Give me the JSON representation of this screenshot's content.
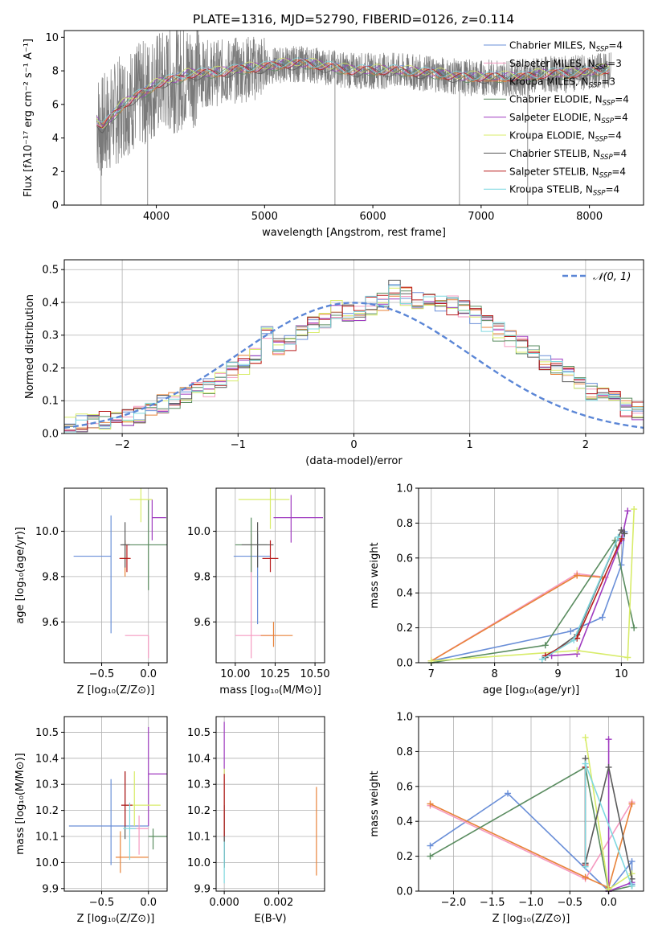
{
  "title": "PLATE=1316, MJD=52790, FIBERID=0126, z=0.114",
  "colors": [
    "#6a8fd8",
    "#f59ac0",
    "#e8833a",
    "#5a8c60",
    "#a03cc0",
    "#d8ec6a",
    "#5a5a5a",
    "#b81c1c",
    "#7fd8e0"
  ],
  "chart_data": [
    {
      "name": "spectrum",
      "type": "line",
      "xlabel": "wavelength [Angstrom, rest frame]",
      "ylabel": "Flux [fλ10⁻¹⁷ erg cm⁻² s⁻¹ A⁻¹]",
      "xlim": [
        3150,
        8500
      ],
      "ylim": [
        0,
        10.4
      ],
      "xticks": [
        4000,
        5000,
        6000,
        7000,
        8000
      ],
      "yticks": [
        0,
        2,
        4,
        6,
        8,
        10
      ],
      "grid": false,
      "legend_position": "right",
      "data_x": [
        3450,
        3500,
        3600,
        3700,
        3800,
        3900,
        4000,
        4100,
        4200,
        4300,
        4400,
        4600,
        4800,
        5000,
        5200,
        5400,
        5600,
        5800,
        6000,
        6200,
        6400,
        6600,
        6800,
        7000,
        7200,
        7400,
        7600,
        7800,
        8000,
        8200
      ],
      "data_y": [
        5.0,
        4.6,
        5.3,
        6.0,
        6.4,
        6.7,
        7.2,
        7.4,
        7.5,
        7.8,
        7.8,
        7.9,
        8.1,
        8.2,
        8.4,
        8.4,
        8.2,
        8.0,
        8.0,
        8.0,
        7.9,
        7.8,
        7.6,
        7.6,
        7.6,
        7.6,
        7.8,
        7.8,
        7.9,
        8.1
      ],
      "legend": [
        {
          "label": "Chabrier MILES, N",
          "sub": "SSP",
          "suffix": "=4"
        },
        {
          "label": "Salpeter MILES, N",
          "sub": "SSP",
          "suffix": "=3"
        },
        {
          "label": "Kroupa MILES, N",
          "sub": "SSP",
          "suffix": "=3"
        },
        {
          "label": "Chabrier ELODIE, N",
          "sub": "SSP",
          "suffix": "=4"
        },
        {
          "label": "Salpeter ELODIE, N",
          "sub": "SSP",
          "suffix": "=4"
        },
        {
          "label": "Kroupa ELODIE, N",
          "sub": "SSP",
          "suffix": "=4"
        },
        {
          "label": "Chabrier STELIB, N",
          "sub": "SSP",
          "suffix": "=4"
        },
        {
          "label": "Salpeter STELIB, N",
          "sub": "SSP",
          "suffix": "=4"
        },
        {
          "label": "Kroupa STELIB, N",
          "sub": "SSP",
          "suffix": "=4"
        }
      ]
    },
    {
      "name": "residuals",
      "type": "histogram",
      "xlabel": "(data-model)/error",
      "ylabel": "Normed distribution",
      "xlim": [
        -2.5,
        2.5
      ],
      "ylim": [
        0,
        0.53
      ],
      "xticks": [
        -2,
        -1,
        0,
        1,
        2
      ],
      "xticklabels": [
        "−2",
        "−1",
        "0",
        "1",
        "2"
      ],
      "yticks": [
        0.0,
        0.1,
        0.2,
        0.3,
        0.4,
        0.5
      ],
      "yticklabels": [
        "0.0",
        "0.1",
        "0.2",
        "0.3",
        "0.4",
        "0.5"
      ],
      "grid": true,
      "legend_label": "𝒩(0, 1)",
      "bin_width": 0.1,
      "bin_start": -2.5,
      "densities": [
        0.02,
        0.03,
        0.03,
        0.04,
        0.05,
        0.05,
        0.06,
        0.08,
        0.09,
        0.1,
        0.12,
        0.13,
        0.14,
        0.17,
        0.19,
        0.21,
        0.24,
        0.3,
        0.27,
        0.28,
        0.31,
        0.33,
        0.35,
        0.38,
        0.37,
        0.36,
        0.39,
        0.4,
        0.44,
        0.42,
        0.41,
        0.42,
        0.4,
        0.39,
        0.38,
        0.36,
        0.33,
        0.31,
        0.29,
        0.27,
        0.24,
        0.22,
        0.2,
        0.18,
        0.15,
        0.13,
        0.12,
        0.1,
        0.08,
        0.07,
        0.05
      ],
      "gaussian": {
        "mu": 0,
        "sigma": 1
      }
    },
    {
      "name": "age-vs-metallicity",
      "type": "errorbar",
      "xlabel": "Z [log₁₀(Z/Z⊙)]",
      "ylabel": "age  [log₁₀(age/yr)]",
      "xlim": [
        -0.9,
        0.2
      ],
      "ylim": [
        9.42,
        10.19
      ],
      "xticks": [
        -0.5,
        0.0
      ],
      "xticklabels": [
        "−0.5",
        "0.0"
      ],
      "yticks": [
        9.6,
        9.8,
        10.0
      ],
      "yticklabels": [
        "9.6",
        "9.8",
        "10.0"
      ],
      "grid": true,
      "points": [
        {
          "x": -0.4,
          "y": 9.89,
          "xerr": [
            0.4,
            0.0
          ],
          "yerr": [
            0.34,
            0.18
          ]
        },
        {
          "x": 0.0,
          "y": 9.54,
          "xerr": [
            0.25,
            0.0
          ],
          "yerr": [
            0.1,
            0.0
          ]
        },
        {
          "x": -0.25,
          "y": 9.88,
          "xerr": [
            0.05,
            0.05
          ],
          "yerr": [
            0.08,
            0.08
          ]
        },
        {
          "x": 0.0,
          "y": 9.94,
          "xerr": [
            0.28,
            0.2
          ],
          "yerr": [
            0.2,
            0.2
          ]
        },
        {
          "x": 0.04,
          "y": 10.06,
          "xerr": [
            0.0,
            0.15
          ],
          "yerr": [
            0.1,
            0.08
          ]
        },
        {
          "x": -0.08,
          "y": 10.14,
          "xerr": [
            0.12,
            0.12
          ],
          "yerr": [
            0.1,
            0.05
          ]
        },
        {
          "x": -0.25,
          "y": 9.94,
          "xerr": [
            0.05,
            0.05
          ],
          "yerr": [
            0.1,
            0.1
          ]
        },
        {
          "x": -0.23,
          "y": 9.88,
          "xerr": [
            0.08,
            0.04
          ],
          "yerr": [
            0.06,
            0.06
          ]
        }
      ]
    },
    {
      "name": "age-vs-mass",
      "type": "errorbar",
      "xlabel": "mass [log₁₀(M/M⊙)]",
      "ylabel": "",
      "xlim": [
        9.88,
        10.56
      ],
      "ylim": [
        9.42,
        10.19
      ],
      "xticks": [
        10.0,
        10.25,
        10.5
      ],
      "xticklabels": [
        "10.00",
        "10.25",
        "10.50"
      ],
      "yticks": [
        9.6,
        9.8,
        10.0
      ],
      "yticklabels": [
        "9.6",
        "9.8",
        "10.0"
      ],
      "grid": true,
      "points": [
        {
          "x": 10.14,
          "y": 9.89,
          "xerr": [
            0.15,
            0.08
          ],
          "yerr": [
            0.3,
            0.1
          ]
        },
        {
          "x": 10.1,
          "y": 9.54,
          "xerr": [
            0.1,
            0.15
          ],
          "yerr": [
            0.1,
            0.45
          ]
        },
        {
          "x": 10.24,
          "y": 9.54,
          "xerr": [
            0.08,
            0.12
          ],
          "yerr": [
            0.05,
            0.06
          ]
        },
        {
          "x": 10.1,
          "y": 9.94,
          "xerr": [
            0.1,
            0.1
          ],
          "yerr": [
            0.12,
            0.12
          ]
        },
        {
          "x": 10.35,
          "y": 10.06,
          "xerr": [
            0.11,
            0.2
          ],
          "yerr": [
            0.11,
            0.1
          ]
        },
        {
          "x": 10.22,
          "y": 10.14,
          "xerr": [
            0.2,
            0.12
          ],
          "yerr": [
            0.13,
            0.05
          ]
        },
        {
          "x": 10.14,
          "y": 9.94,
          "xerr": [
            0.1,
            0.1
          ],
          "yerr": [
            0.1,
            0.1
          ]
        },
        {
          "x": 10.22,
          "y": 9.88,
          "xerr": [
            0.05,
            0.05
          ],
          "yerr": [
            0.06,
            0.08
          ]
        }
      ]
    },
    {
      "name": "weight-vs-age",
      "type": "line",
      "xlabel": "age  [log₁₀(age/yr)]",
      "ylabel": "mass weight",
      "xlim": [
        6.8,
        10.35
      ],
      "ylim": [
        0,
        1.0
      ],
      "xticks": [
        7,
        8,
        9,
        10
      ],
      "xticklabels": [
        "7",
        "8",
        "9",
        "10"
      ],
      "yticks": [
        0.0,
        0.2,
        0.4,
        0.6,
        0.8,
        1.0
      ],
      "yticklabels": [
        "0.0",
        "0.2",
        "0.4",
        "0.6",
        "0.8",
        "1.0"
      ],
      "grid": true,
      "series": [
        {
          "x": [
            7.0,
            9.2,
            9.7,
            10.0,
            10.05
          ],
          "y": [
            0.01,
            0.18,
            0.26,
            0.56,
            0.75
          ]
        },
        {
          "x": [
            7.0,
            9.3,
            9.75
          ],
          "y": [
            0.01,
            0.51,
            0.49
          ]
        },
        {
          "x": [
            7.0,
            9.3,
            9.7
          ],
          "y": [
            0.01,
            0.5,
            0.49
          ]
        },
        {
          "x": [
            7.0,
            8.8,
            9.9,
            10.2
          ],
          "y": [
            0.0,
            0.1,
            0.7,
            0.2
          ]
        },
        {
          "x": [
            8.9,
            9.3,
            10.0,
            10.1
          ],
          "y": [
            0.04,
            0.05,
            0.7,
            0.87
          ]
        },
        {
          "x": [
            7.0,
            9.3,
            10.1,
            10.2
          ],
          "y": [
            0.01,
            0.07,
            0.03,
            0.88
          ]
        },
        {
          "x": [
            8.8,
            9.3,
            10.0,
            10.05
          ],
          "y": [
            0.03,
            0.16,
            0.76,
            0.74
          ]
        },
        {
          "x": [
            8.8,
            9.3,
            10.0
          ],
          "y": [
            0.04,
            0.14,
            0.71
          ]
        },
        {
          "x": [
            8.75,
            9.25,
            9.95
          ],
          "y": [
            0.02,
            0.13,
            0.72
          ]
        }
      ]
    },
    {
      "name": "mass-vs-metallicity",
      "type": "errorbar",
      "xlabel": "Z [log₁₀(Z/Z⊙)]",
      "ylabel": "mass [log₁₀(M/M⊙)]",
      "xlim": [
        -0.9,
        0.2
      ],
      "ylim": [
        9.89,
        10.56
      ],
      "xticks": [
        -0.5,
        0.0
      ],
      "xticklabels": [
        "−0.5",
        "0.0"
      ],
      "yticks": [
        9.9,
        10.0,
        10.1,
        10.2,
        10.3,
        10.4,
        10.5
      ],
      "yticklabels": [
        "9.9",
        "10.0",
        "10.1",
        "10.2",
        "10.3",
        "10.4",
        "10.5"
      ],
      "grid": true,
      "points": [
        {
          "x": -0.4,
          "y": 10.14,
          "xerr": [
            0.45,
            0.4
          ],
          "yerr": [
            0.15,
            0.18
          ]
        },
        {
          "x": -0.1,
          "y": 10.13,
          "xerr": [
            0.1,
            0.1
          ],
          "yerr": [
            0.1,
            0.05
          ]
        },
        {
          "x": -0.3,
          "y": 10.02,
          "xerr": [
            0.05,
            0.3
          ],
          "yerr": [
            0.06,
            0.1
          ]
        },
        {
          "x": 0.05,
          "y": 10.1,
          "xerr": [
            0.05,
            0.18
          ],
          "yerr": [
            0.05,
            0.03
          ]
        },
        {
          "x": 0.0,
          "y": 10.34,
          "xerr": [
            0.0,
            0.2
          ],
          "yerr": [
            0.2,
            0.18
          ]
        },
        {
          "x": -0.15,
          "y": 10.22,
          "xerr": [
            0.1,
            0.28
          ],
          "yerr": [
            0.08,
            0.13
          ]
        },
        {
          "x": -0.25,
          "y": 10.22,
          "xerr": [
            0.04,
            0.04
          ],
          "yerr": [
            0.13,
            0.13
          ]
        },
        {
          "x": -0.25,
          "y": 10.22,
          "xerr": [
            0.04,
            0.08
          ],
          "yerr": [
            0.08,
            0.13
          ]
        },
        {
          "x": -0.2,
          "y": 10.13,
          "xerr": [
            0.07,
            0.07
          ],
          "yerr": [
            0.12,
            0.1
          ]
        }
      ]
    },
    {
      "name": "mass-vs-ebv",
      "type": "errorbar",
      "xlabel": "E(B-V)",
      "ylabel": "",
      "xlim": [
        -0.0003,
        0.0037
      ],
      "ylim": [
        9.89,
        10.56
      ],
      "xticks": [
        0.0,
        0.002
      ],
      "xticklabels": [
        "0.000",
        "0.002"
      ],
      "yticks": [
        9.9,
        10.0,
        10.1,
        10.2,
        10.3,
        10.4,
        10.5
      ],
      "yticklabels": [
        "9.9",
        "10.0",
        "10.1",
        "10.2",
        "10.3",
        "10.4",
        "10.5"
      ],
      "grid": true,
      "points": [
        {
          "x": 0.0,
          "y": 10.14,
          "xerr": [
            0,
            0
          ],
          "yerr": [
            0.15,
            0.18
          ]
        },
        {
          "x": 0.0,
          "y": 10.13,
          "xerr": [
            0,
            0
          ],
          "yerr": [
            0.1,
            0.05
          ]
        },
        {
          "x": 0.0034,
          "y": 10.13,
          "xerr": [
            0,
            0
          ],
          "yerr": [
            0.18,
            0.16
          ]
        },
        {
          "x": 0.0,
          "y": 10.1,
          "xerr": [
            0,
            0
          ],
          "yerr": [
            0.12,
            0.12
          ]
        },
        {
          "x": 0.0,
          "y": 10.34,
          "xerr": [
            0,
            0
          ],
          "yerr": [
            0.2,
            0.2
          ]
        },
        {
          "x": 0.0,
          "y": 10.2,
          "xerr": [
            0,
            0
          ],
          "yerr": [
            0.08,
            0.16
          ]
        },
        {
          "x": 0.0,
          "y": 10.1,
          "xerr": [
            0,
            0
          ],
          "yerr": [
            0.12,
            0.12
          ]
        },
        {
          "x": 0.0,
          "y": 10.22,
          "xerr": [
            0,
            0
          ],
          "yerr": [
            0.12,
            0.12
          ]
        },
        {
          "x": 0.0,
          "y": 10.0,
          "xerr": [
            0,
            0
          ],
          "yerr": [
            0.08,
            0.08
          ]
        }
      ]
    },
    {
      "name": "weight-vs-metallicity",
      "type": "line",
      "xlabel": "Z [log₁₀(Z/Z⊙)]",
      "ylabel": "mass weight",
      "xlim": [
        -2.45,
        0.45
      ],
      "ylim": [
        0,
        1.0
      ],
      "xticks": [
        -2.0,
        -1.5,
        -1.0,
        -0.5,
        0.0
      ],
      "xticklabels": [
        "−2.0",
        "−1.5",
        "−1.0",
        "−0.5",
        "0.0"
      ],
      "yticks": [
        0.0,
        0.2,
        0.4,
        0.6,
        0.8,
        1.0
      ],
      "yticklabels": [
        "0.0",
        "0.2",
        "0.4",
        "0.6",
        "0.8",
        "1.0"
      ],
      "grid": true,
      "series": [
        {
          "x": [
            -2.3,
            -1.3,
            0.0,
            0.3,
            0.3
          ],
          "y": [
            0.26,
            0.56,
            0.0,
            0.17,
            0.04
          ]
        },
        {
          "x": [
            -2.3,
            -0.3,
            0.3
          ],
          "y": [
            0.49,
            0.07,
            0.51
          ]
        },
        {
          "x": [
            -2.3,
            -0.3,
            0.0,
            0.3
          ],
          "y": [
            0.5,
            0.08,
            0.02,
            0.5
          ]
        },
        {
          "x": [
            -2.3,
            -0.3,
            0.0,
            0.3
          ],
          "y": [
            0.2,
            0.71,
            0.0,
            0.03
          ]
        },
        {
          "x": [
            0.0,
            0.0,
            0.3
          ],
          "y": [
            0.87,
            0.0,
            0.05
          ]
        },
        {
          "x": [
            -0.3,
            0.0,
            0.3
          ],
          "y": [
            0.88,
            0.01,
            0.1
          ]
        },
        {
          "x": [
            -0.3,
            -0.3,
            0.0,
            0.3
          ],
          "y": [
            0.76,
            0.16,
            0.71,
            0.07
          ]
        },
        {
          "x": [
            -0.3,
            -0.3
          ],
          "y": [
            0.15,
            0.71
          ]
        },
        {
          "x": [
            -0.3,
            -0.3,
            0.3
          ],
          "y": [
            0.14,
            0.73,
            0.03
          ]
        }
      ]
    }
  ]
}
